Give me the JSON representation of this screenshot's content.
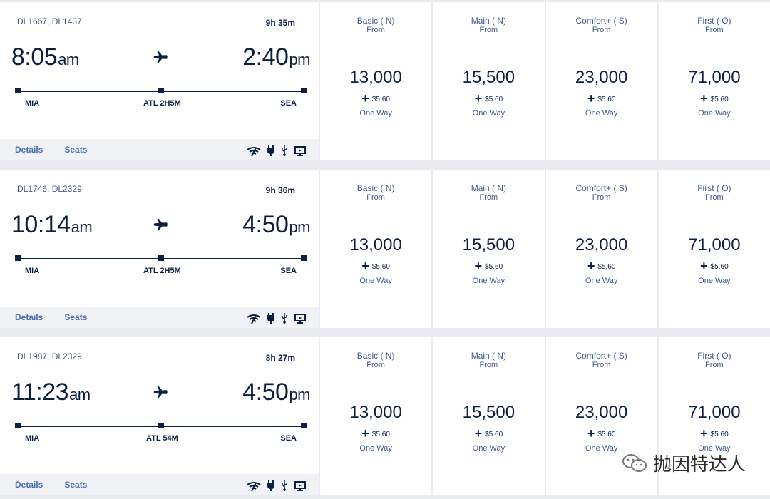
{
  "flights": [
    {
      "flight_numbers": "DL1667, DL1437",
      "duration": "9h 35m",
      "dep_time": "8:05",
      "dep_ampm": "am",
      "arr_time": "2:40",
      "arr_ampm": "pm",
      "origin": "MIA",
      "layover": "ATL 2H5M",
      "destination": "SEA",
      "fares": [
        {
          "class": "Basic ( N)",
          "from": "From",
          "price": "13,000",
          "tax": "$5.60",
          "trip": "One Way"
        },
        {
          "class": "Main ( N)",
          "from": "From",
          "price": "15,500",
          "tax": "$5.60",
          "trip": "One Way"
        },
        {
          "class": "Comfort+ ( S)",
          "from": "From",
          "price": "23,000",
          "tax": "$5.60",
          "trip": "One Way"
        },
        {
          "class": "First ( O)",
          "from": "From",
          "price": "71,000",
          "tax": "$5.60",
          "trip": "One Way"
        }
      ]
    },
    {
      "flight_numbers": "DL1746, DL2329",
      "duration": "9h 36m",
      "dep_time": "10:14",
      "dep_ampm": "am",
      "arr_time": "4:50",
      "arr_ampm": "pm",
      "origin": "MIA",
      "layover": "ATL 2H5M",
      "destination": "SEA",
      "fares": [
        {
          "class": "Basic ( N)",
          "from": "From",
          "price": "13,000",
          "tax": "$5.60",
          "trip": "One Way"
        },
        {
          "class": "Main ( N)",
          "from": "From",
          "price": "15,500",
          "tax": "$5.60",
          "trip": "One Way"
        },
        {
          "class": "Comfort+ ( S)",
          "from": "From",
          "price": "23,000",
          "tax": "$5.60",
          "trip": "One Way"
        },
        {
          "class": "First ( O)",
          "from": "From",
          "price": "71,000",
          "tax": "$5.60",
          "trip": "One Way"
        }
      ]
    },
    {
      "flight_numbers": "DL1987, DL2329",
      "duration": "8h 27m",
      "dep_time": "11:23",
      "dep_ampm": "am",
      "arr_time": "4:50",
      "arr_ampm": "pm",
      "origin": "MIA",
      "layover": "ATL 54M",
      "destination": "SEA",
      "fares": [
        {
          "class": "Basic ( N)",
          "from": "From",
          "price": "13,000",
          "tax": "$5.60",
          "trip": "One Way"
        },
        {
          "class": "Main ( N)",
          "from": "From",
          "price": "15,500",
          "tax": "$5.60",
          "trip": "One Way"
        },
        {
          "class": "Comfort+ ( S)",
          "from": "From",
          "price": "23,000",
          "tax": "$5.60",
          "trip": "One Way"
        },
        {
          "class": "First ( O)",
          "from": "From",
          "price": "71,000",
          "tax": "$5.60",
          "trip": "One Way"
        }
      ]
    }
  ],
  "tabs": {
    "details": "Details",
    "seats": "Seats"
  },
  "amenity_icons": [
    "wifi-icon",
    "power-outlet-icon",
    "usb-icon",
    "seatback-screen-icon"
  ],
  "watermark_text": "抛因特达人",
  "colors": {
    "navy": "#0b1f41",
    "link": "#4a6fb0"
  }
}
